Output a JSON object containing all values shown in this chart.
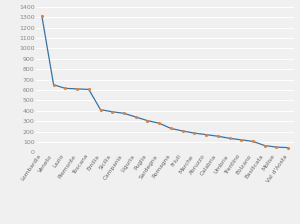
{
  "categories": [
    "Lombardia",
    "Veneto",
    "Lazio",
    "Piemonte",
    "Toscana",
    "Emilia",
    "Sicilia",
    "Campania",
    "Liguria",
    "Puglia",
    "Sardegna",
    "Romagna",
    "Friuli",
    "Marche",
    "Abruzzo",
    "Calabria",
    "Umbria",
    "Trentino",
    "Bolzano",
    "Basilicata",
    "Molise",
    "Val d'Aosta"
  ],
  "values": [
    1310,
    650,
    615,
    610,
    605,
    410,
    390,
    375,
    340,
    305,
    280,
    230,
    205,
    185,
    170,
    155,
    135,
    120,
    105,
    65,
    50,
    45
  ],
  "line_color": "#2e75b6",
  "marker_color": "#ed7d31",
  "background_color": "#f0f0f0",
  "ylim": [
    0,
    1400
  ],
  "yticks": [
    0,
    100,
    200,
    300,
    400,
    500,
    600,
    700,
    800,
    900,
    1000,
    1100,
    1200,
    1300,
    1400
  ],
  "grid_color": "#ffffff",
  "tick_fontsize": 4.5,
  "label_fontsize": 4.2,
  "tick_color": "#888888"
}
